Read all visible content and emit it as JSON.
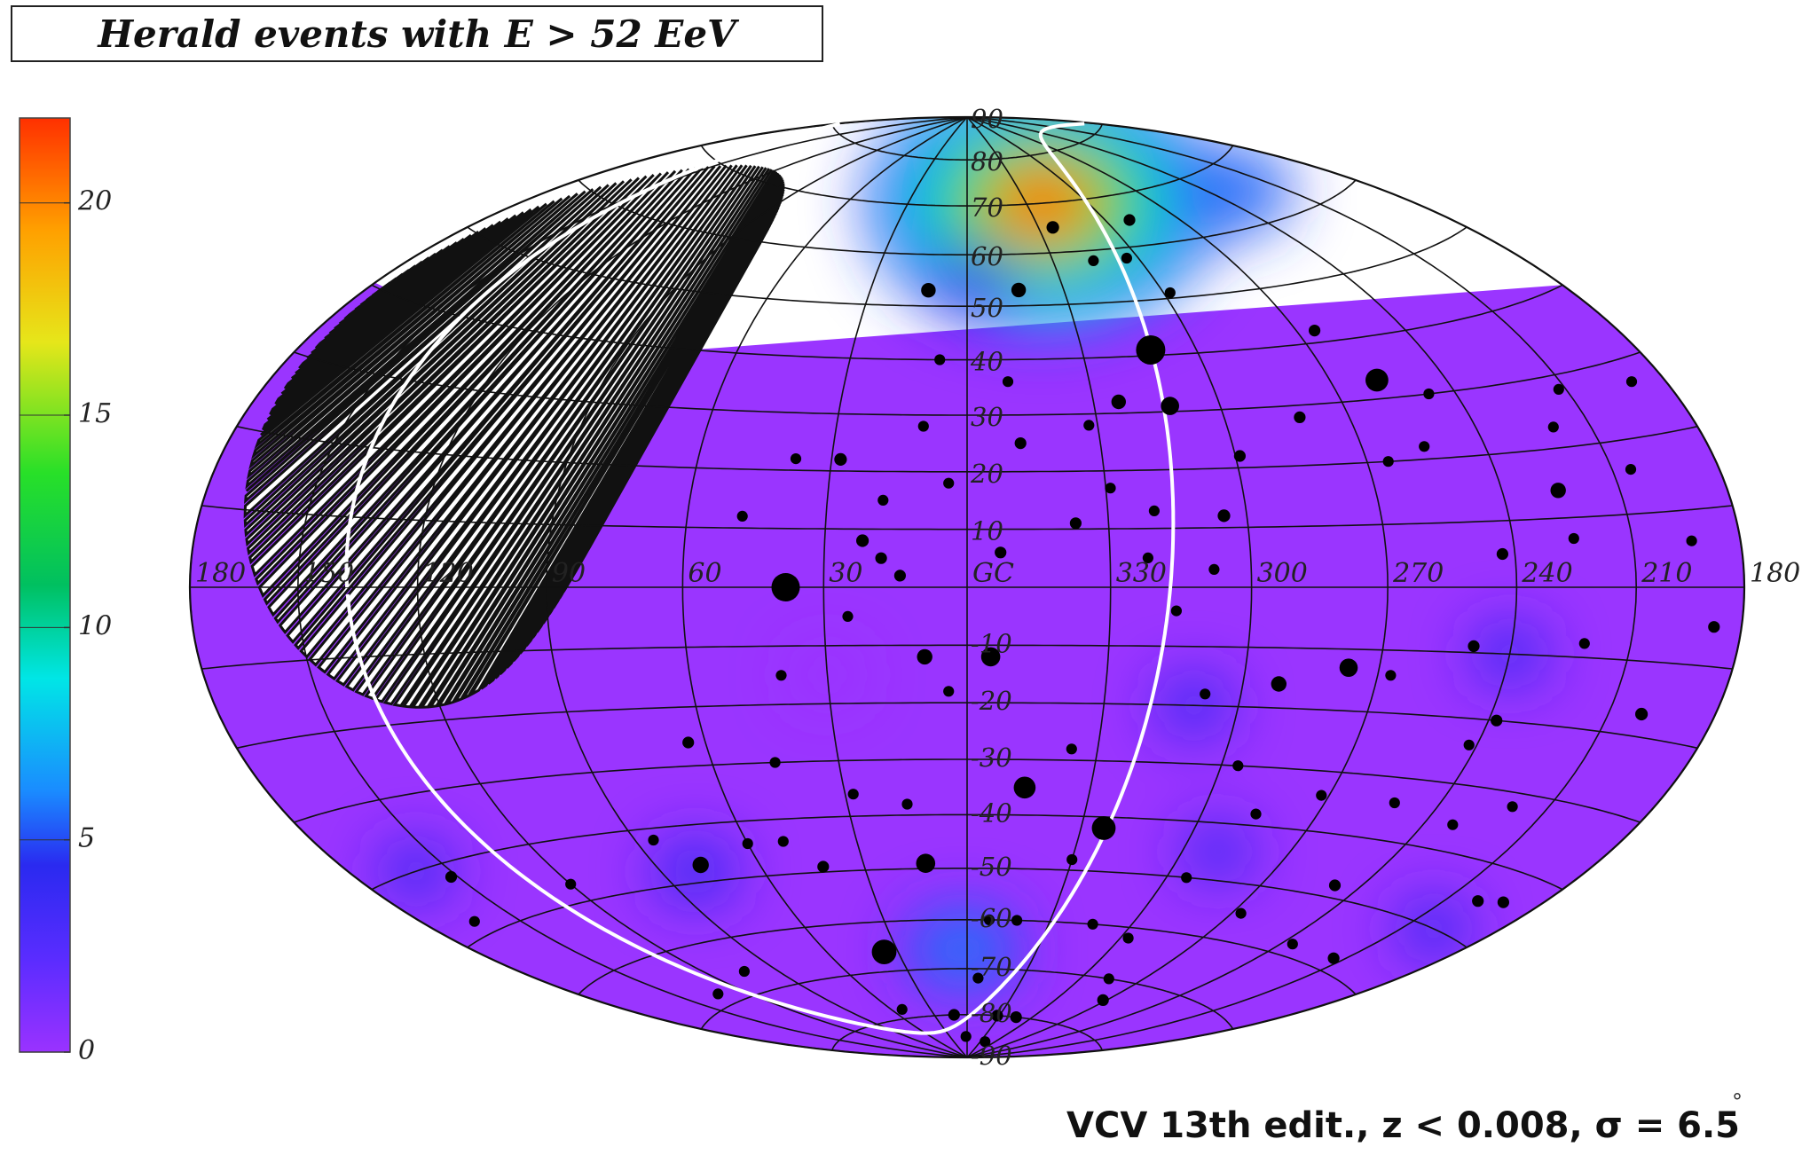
{
  "header": {
    "title": "Herald events with E > 52 EeV"
  },
  "footer": {
    "caption": "VCV 13th edit., z < 0.008,   σ = 6.5",
    "degree": "°"
  },
  "chart_data": {
    "type": "heatmap",
    "projection": "hammer-aitoff",
    "coordinate_system": "galactic",
    "title": "Herald events with E > 52 EeV",
    "colorbar": {
      "range": [
        0,
        22
      ],
      "ticks": [
        0,
        5,
        10,
        15,
        20
      ],
      "tick_labels": [
        "0",
        "5",
        "10",
        "15",
        "20"
      ],
      "colors": [
        "#9a32ff",
        "#2a2af0",
        "#1a8cff",
        "#00e6e6",
        "#00c060",
        "#28e028",
        "#e6e61a",
        "#ffa000",
        "#ff3000"
      ]
    },
    "longitude_labels": [
      "180",
      "150",
      "120",
      "90",
      "60",
      "30",
      "GC",
      "330",
      "300",
      "270",
      "240",
      "210",
      "180"
    ],
    "latitude_labels": [
      "90",
      "80",
      "70",
      "60",
      "50",
      "40",
      "30",
      "20",
      "10",
      "-10",
      "-20",
      "-30",
      "-40",
      "-50",
      "-60",
      "-70",
      "-80",
      "-90"
    ],
    "grid": true,
    "hotspots": [
      {
        "l": -38,
        "b": 70,
        "value": 21
      },
      {
        "l": 0,
        "b": 54,
        "value": 4
      },
      {
        "l": 2,
        "b": -66,
        "value": 5
      },
      {
        "l": -130,
        "b": 66,
        "value": 5
      },
      {
        "l": 80,
        "b": -48,
        "value": 3
      },
      {
        "l": -120,
        "b": -10,
        "value": 2
      },
      {
        "l": -160,
        "b": -50,
        "value": 2
      },
      {
        "l": 160,
        "b": -40,
        "value": 2
      },
      {
        "l": -50,
        "b": -20,
        "value": 2
      },
      {
        "l": -70,
        "b": -45,
        "value": 1.5
      },
      {
        "l": 30,
        "b": -15,
        "value": 1.2
      }
    ],
    "sources": [
      {
        "l": -48,
        "b": 41,
        "m": 2.5
      },
      {
        "l": -102,
        "b": 33,
        "m": 1.8
      },
      {
        "l": 38,
        "b": 0,
        "m": 2.4
      },
      {
        "l": 36,
        "b": -66,
        "m": 2.0
      },
      {
        "l": -36,
        "b": -42,
        "m": 1.9
      },
      {
        "l": -14,
        "b": -35,
        "m": 1.7
      },
      {
        "l": 12,
        "b": -49,
        "m": 1.4
      },
      {
        "l": -5,
        "b": -12,
        "m": 1.4
      },
      {
        "l": -48,
        "b": 31,
        "m": 1.3
      },
      {
        "l": -83,
        "b": -13,
        "m": 1.3
      },
      {
        "l": 77,
        "b": -47,
        "m": 1.1
      },
      {
        "l": -134,
        "b": 14,
        "m": 1.0
      },
      {
        "l": 12,
        "b": 53,
        "m": 0.9
      },
      {
        "l": -16,
        "b": 53,
        "m": 0.9
      },
      {
        "l": 9,
        "b": -12,
        "m": 1.0
      },
      {
        "l": -68,
        "b": -16,
        "m": 1.0
      },
      {
        "l": -36,
        "b": 32,
        "m": 0.9
      },
      {
        "l": -36,
        "b": 65,
        "m": 0.7
      },
      {
        "l": -70,
        "b": 65,
        "m": 0.6
      },
      {
        "l": -95,
        "b": 42,
        "m": 0.6
      },
      {
        "l": -23,
        "b": 11,
        "m": 0.6
      },
      {
        "l": -7,
        "b": 6,
        "m": 0.6
      },
      {
        "l": 22,
        "b": 8,
        "m": 0.7
      },
      {
        "l": 18,
        "b": 5,
        "m": 0.6
      },
      {
        "l": 14,
        "b": 2,
        "m": 0.6
      },
      {
        "l": 28,
        "b": 22,
        "m": 0.7
      },
      {
        "l": 7,
        "b": 40,
        "m": 0.5
      },
      {
        "l": -12,
        "b": 25,
        "m": 0.6
      },
      {
        "l": -52,
        "b": 3,
        "m": 0.5
      },
      {
        "l": -55,
        "b": 12,
        "m": 0.7
      },
      {
        "l": -61,
        "b": 22,
        "m": 0.6
      },
      {
        "l": -78,
        "b": 28,
        "m": 0.6
      },
      {
        "l": -95,
        "b": 20,
        "m": 0.5
      },
      {
        "l": -105,
        "b": 22,
        "m": 0.5
      },
      {
        "l": -113,
        "b": 30,
        "m": 0.5
      },
      {
        "l": -117,
        "b": 5,
        "m": 0.6
      },
      {
        "l": -111,
        "b": -9,
        "m": 0.6
      },
      {
        "l": -93,
        "b": -14,
        "m": 0.5
      },
      {
        "l": -122,
        "b": -20,
        "m": 0.6
      },
      {
        "l": -128,
        "b": -36,
        "m": 0.5
      },
      {
        "l": -148,
        "b": 28,
        "m": 0.5
      },
      {
        "l": -155,
        "b": 16,
        "m": 0.5
      },
      {
        "l": -159,
        "b": -17,
        "m": 0.7
      },
      {
        "l": -160,
        "b": -45,
        "m": 0.6
      },
      {
        "l": -168,
        "b": -44,
        "m": 0.6
      },
      {
        "l": -146,
        "b": -58,
        "m": 0.6
      },
      {
        "l": -124,
        "b": -58,
        "m": 0.5
      },
      {
        "l": -74,
        "b": -70,
        "m": 0.5
      },
      {
        "l": -46,
        "b": -80,
        "m": 0.6
      },
      {
        "l": -28,
        "b": -80,
        "m": 0.6
      },
      {
        "l": 12,
        "b": -80,
        "m": 0.6
      },
      {
        "l": -8,
        "b": -60,
        "m": 0.5
      },
      {
        "l": -18,
        "b": -60,
        "m": 0.5
      },
      {
        "l": -63,
        "b": -62,
        "m": 0.5
      },
      {
        "l": -93,
        "b": -55,
        "m": 0.5
      },
      {
        "l": -112,
        "b": -48,
        "m": 0.6
      },
      {
        "l": -88,
        "b": -74,
        "m": 0.6
      },
      {
        "l": -66,
        "b": -50,
        "m": 0.5
      },
      {
        "l": 42,
        "b": -49,
        "m": 0.6
      },
      {
        "l": 50,
        "b": -44,
        "m": 0.5
      },
      {
        "l": 60,
        "b": -44,
        "m": 0.5
      },
      {
        "l": 85,
        "b": -42,
        "m": 0.5
      },
      {
        "l": 120,
        "b": -47,
        "m": 0.5
      },
      {
        "l": 152,
        "b": -42,
        "m": 0.6
      },
      {
        "l": 164,
        "b": -48,
        "m": 0.5
      },
      {
        "l": 133,
        "b": -68,
        "m": 0.5
      },
      {
        "l": 104,
        "b": -66,
        "m": 0.5
      },
      {
        "l": 52,
        "b": -78,
        "m": 0.5
      },
      {
        "l": 64,
        "b": -26,
        "m": 0.6
      },
      {
        "l": 45,
        "b": -30,
        "m": 0.5
      },
      {
        "l": 40,
        "b": -15,
        "m": 0.5
      },
      {
        "l": 28,
        "b": -36,
        "m": 0.5
      },
      {
        "l": 15,
        "b": -38,
        "m": 0.5
      },
      {
        "l": 4,
        "b": -18,
        "m": 0.5
      },
      {
        "l": 38,
        "b": 22,
        "m": 0.5
      },
      {
        "l": 48,
        "b": 12,
        "m": 0.5
      },
      {
        "l": 18,
        "b": 15,
        "m": 0.5
      },
      {
        "l": 10,
        "b": 28,
        "m": 0.5
      },
      {
        "l": 4,
        "b": 18,
        "m": 0.5
      },
      {
        "l": -10,
        "b": 36,
        "m": 0.5
      },
      {
        "l": -28,
        "b": 28,
        "m": 0.5
      },
      {
        "l": -31,
        "b": 17,
        "m": 0.5
      },
      {
        "l": -40,
        "b": 13,
        "m": 0.5
      },
      {
        "l": -38,
        "b": 5,
        "m": 0.5
      },
      {
        "l": -44,
        "b": -4,
        "m": 0.5
      },
      {
        "l": -52,
        "b": -18,
        "m": 0.5
      },
      {
        "l": -64,
        "b": -30,
        "m": 0.5
      },
      {
        "l": -74,
        "b": -38,
        "m": 0.5
      },
      {
        "l": -88,
        "b": -34,
        "m": 0.5
      },
      {
        "l": -108,
        "b": -34,
        "m": 0.5
      },
      {
        "l": -118,
        "b": -24,
        "m": 0.5
      },
      {
        "l": -138,
        "b": -8,
        "m": 0.5
      },
      {
        "l": -140,
        "b": -32,
        "m": 0.5
      },
      {
        "l": -172,
        "b": -5,
        "m": 0.6
      },
      {
        "l": -170,
        "b": 27,
        "m": 0.5
      },
      {
        "l": -166,
        "b": 6,
        "m": 0.5
      },
      {
        "l": -135,
        "b": 7,
        "m": 0.5
      },
      {
        "l": -140,
        "b": 23,
        "m": 0.5
      },
      {
        "l": -56,
        "b": 58,
        "m": 0.5
      },
      {
        "l": -62,
        "b": 51,
        "m": 0.5
      },
      {
        "l": -44,
        "b": 58,
        "m": 0.5
      },
      {
        "l": 25,
        "b": -5,
        "m": 0.5
      },
      {
        "l": -24,
        "b": -28,
        "m": 0.5
      },
      {
        "l": -30,
        "b": -48,
        "m": 0.5
      },
      {
        "l": -46,
        "b": -60,
        "m": 0.5
      },
      {
        "l": -6,
        "b": -72,
        "m": 0.5
      },
      {
        "l": 2,
        "b": -85,
        "m": 0.5
      },
      {
        "l": -40,
        "b": -86,
        "m": 0.5
      }
    ]
  }
}
